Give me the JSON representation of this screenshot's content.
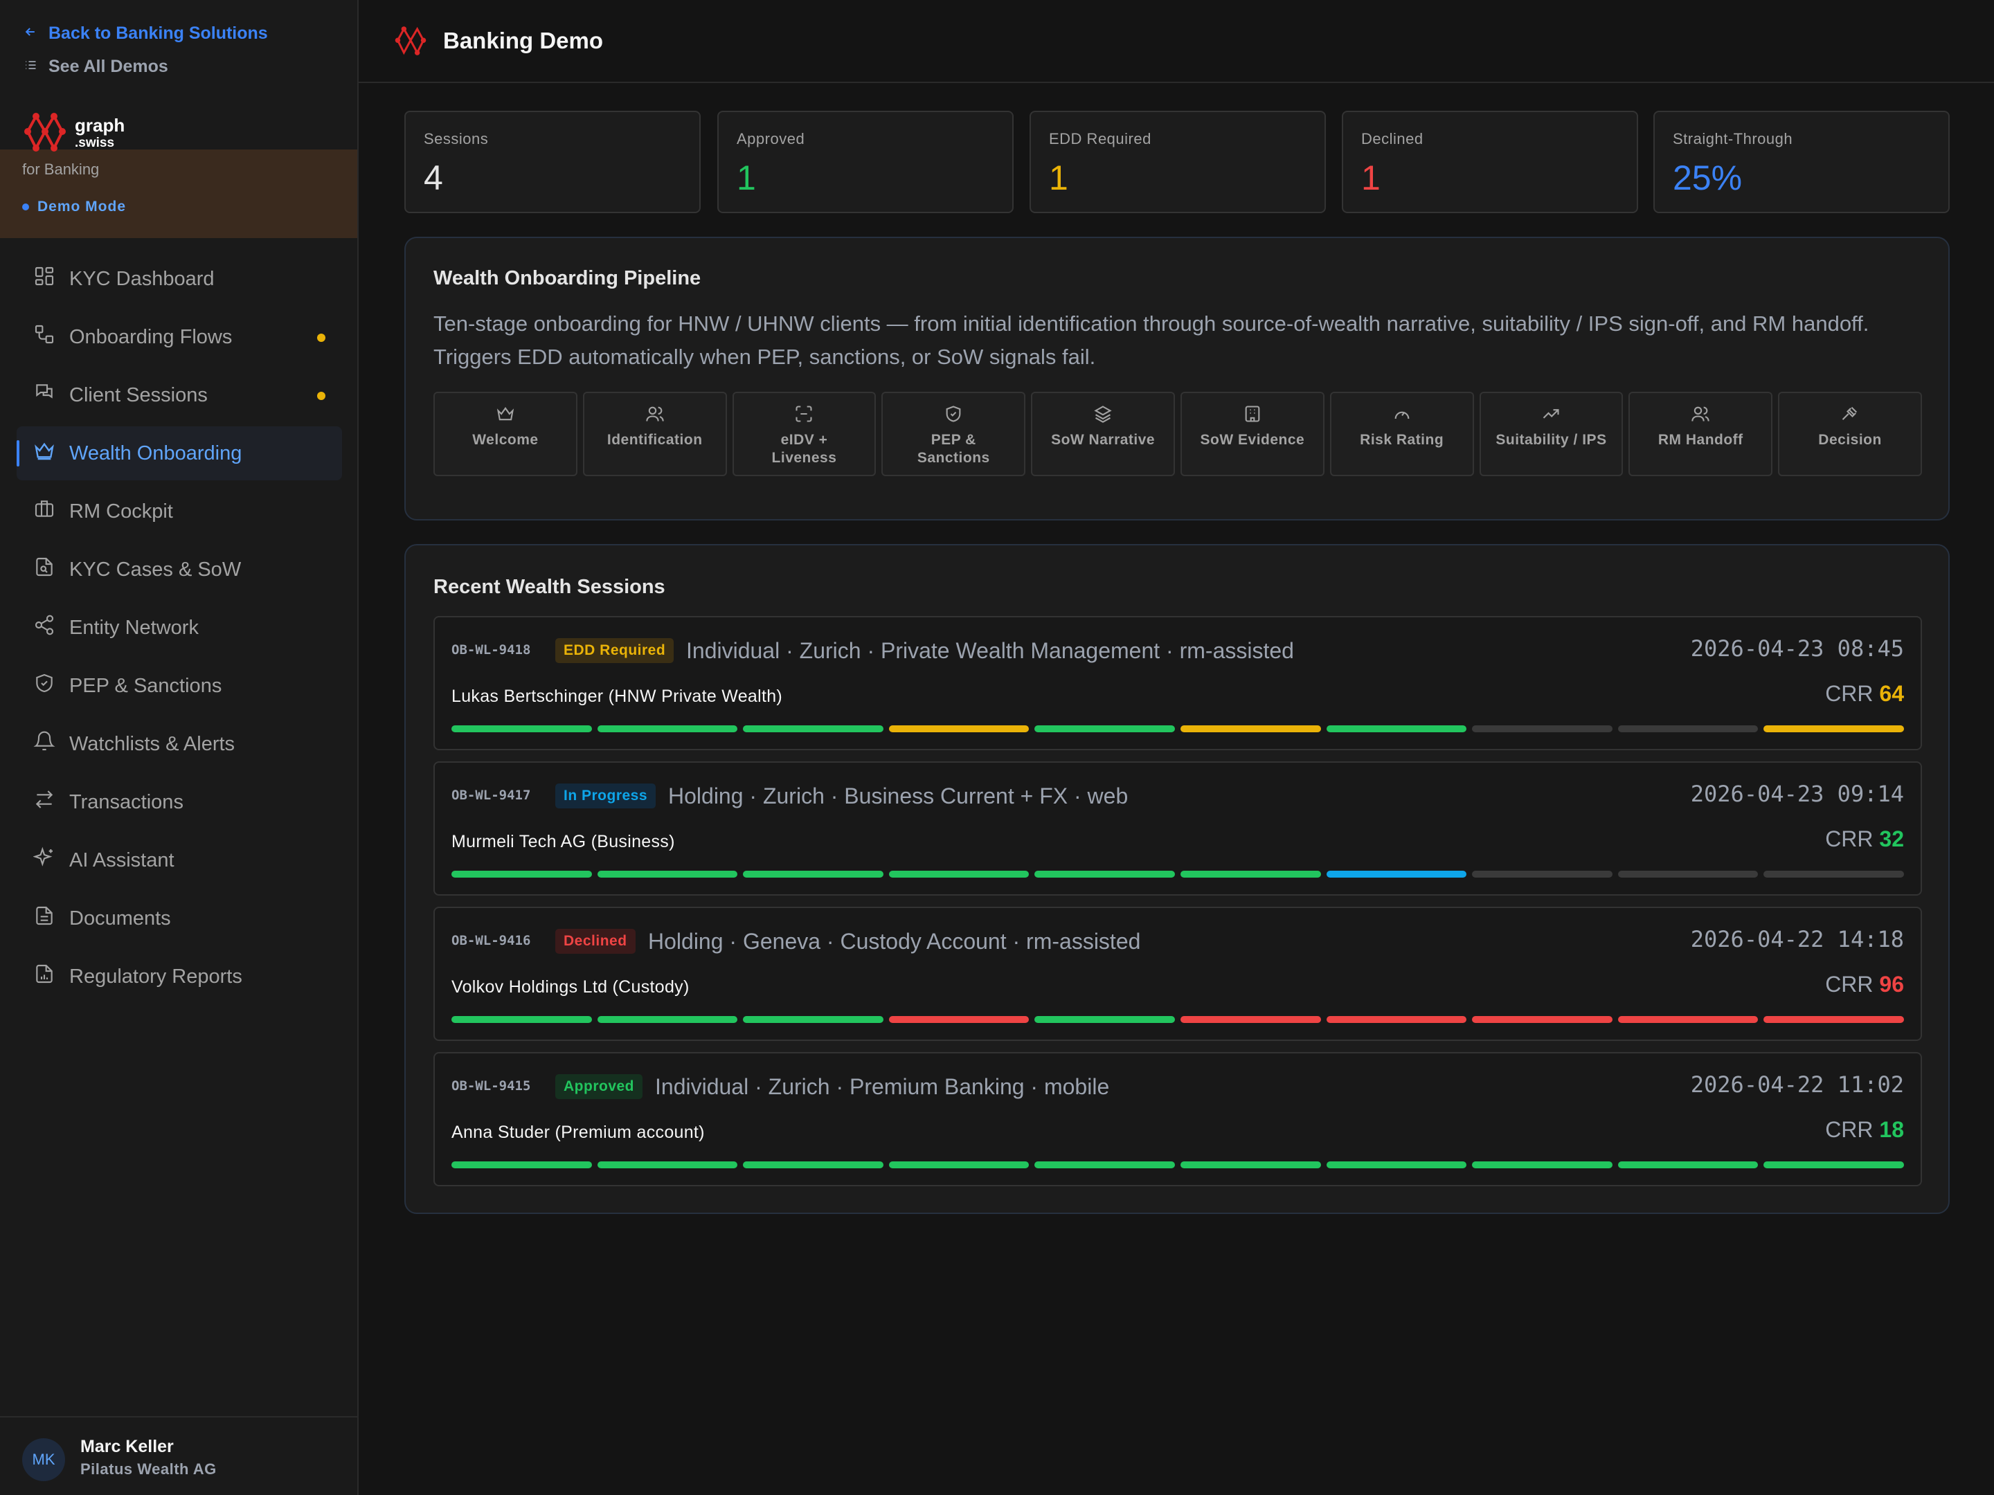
{
  "sidebar": {
    "back_link": "Back to Banking Solutions",
    "all_demos": "See All Demos",
    "logo_line1": "graph",
    "logo_line2": ".swiss",
    "for_banking": "for Banking",
    "demo_mode": "Demo Mode",
    "items": [
      {
        "label": "KYC Dashboard",
        "icon": "dashboard-icon"
      },
      {
        "label": "Onboarding Flows",
        "icon": "flow-icon",
        "dot": true
      },
      {
        "label": "Client Sessions",
        "icon": "sessions-icon",
        "dot": true
      },
      {
        "label": "Wealth Onboarding",
        "icon": "crown-icon",
        "active": true
      },
      {
        "label": "RM Cockpit",
        "icon": "briefcase-icon"
      },
      {
        "label": "KYC Cases & SoW",
        "icon": "file-search-icon"
      },
      {
        "label": "Entity Network",
        "icon": "share-icon"
      },
      {
        "label": "PEP & Sanctions",
        "icon": "shield-icon"
      },
      {
        "label": "Watchlists & Alerts",
        "icon": "bell-icon"
      },
      {
        "label": "Transactions",
        "icon": "arrows-icon"
      },
      {
        "label": "AI Assistant",
        "icon": "sparkles-icon"
      },
      {
        "label": "Documents",
        "icon": "document-icon"
      },
      {
        "label": "Regulatory Reports",
        "icon": "report-icon"
      }
    ],
    "user": {
      "initials": "MK",
      "name": "Marc Keller",
      "org": "Pilatus Wealth AG"
    }
  },
  "header": {
    "title": "Banking Demo"
  },
  "stats": [
    {
      "label": "Sessions",
      "value": "4",
      "color": "#e5e5e5"
    },
    {
      "label": "Approved",
      "value": "1",
      "color": "#22c55e"
    },
    {
      "label": "EDD Required",
      "value": "1",
      "color": "#eab308"
    },
    {
      "label": "Declined",
      "value": "1",
      "color": "#ef4444"
    },
    {
      "label": "Straight-Through",
      "value": "25%",
      "color": "#3b82f6"
    }
  ],
  "pipeline": {
    "title": "Wealth Onboarding Pipeline",
    "description": "Ten-stage onboarding for HNW / UHNW clients — from initial identification through source-of-wealth narrative, suitability / IPS sign-off, and RM handoff. Triggers EDD automatically when PEP, sanctions, or SoW signals fail.",
    "stages": [
      {
        "label": "Welcome",
        "icon": "crown-icon"
      },
      {
        "label": "Identification",
        "icon": "users-icon"
      },
      {
        "label": "eIDV + Liveness",
        "icon": "scan-face-icon"
      },
      {
        "label": "PEP & Sanctions",
        "icon": "shield-check-icon"
      },
      {
        "label": "SoW Narrative",
        "icon": "layers-icon"
      },
      {
        "label": "SoW Evidence",
        "icon": "building-icon"
      },
      {
        "label": "Risk Rating",
        "icon": "gauge-icon"
      },
      {
        "label": "Suitability / IPS",
        "icon": "trending-up-icon"
      },
      {
        "label": "RM Handoff",
        "icon": "users-icon"
      },
      {
        "label": "Decision",
        "icon": "gavel-icon"
      }
    ]
  },
  "sessions_panel": {
    "title": "Recent Wealth Sessions",
    "crr_label": "CRR",
    "sessions": [
      {
        "id": "OB-WL-9418",
        "status": "EDD Required",
        "status_color": "#eab308",
        "status_bg": "#3a2e14",
        "meta": "Individual  · Zurich  · Private Wealth Management  · rm-assisted",
        "time": "2026-04-23 08:45",
        "client": "Lukas Bertschinger (HNW Private Wealth)",
        "crr": "64",
        "crr_color": "#eab308",
        "steps": [
          "done",
          "done",
          "done",
          "warn",
          "done",
          "warn",
          "done",
          "pending",
          "pending",
          "warn"
        ]
      },
      {
        "id": "OB-WL-9417",
        "status": "In Progress",
        "status_color": "#0ea5e9",
        "status_bg": "#13283a",
        "meta": "Holding  · Zurich  · Business Current + FX  · web",
        "time": "2026-04-23 09:14",
        "client": "Murmeli Tech AG (Business)",
        "crr": "32",
        "crr_color": "#22c55e",
        "steps": [
          "done",
          "done",
          "done",
          "done",
          "done",
          "done",
          "active",
          "pending",
          "pending",
          "pending"
        ]
      },
      {
        "id": "OB-WL-9416",
        "status": "Declined",
        "status_color": "#ef4444",
        "status_bg": "#3a1a1a",
        "meta": "Holding  · Geneva  · Custody Account  · rm-assisted",
        "time": "2026-04-22 14:18",
        "client": "Volkov Holdings Ltd (Custody)",
        "crr": "96",
        "crr_color": "#ef4444",
        "steps": [
          "done",
          "done",
          "done",
          "fail",
          "done",
          "fail",
          "fail",
          "fail",
          "fail",
          "fail"
        ]
      },
      {
        "id": "OB-WL-9415",
        "status": "Approved",
        "status_color": "#22c55e",
        "status_bg": "#15301f",
        "meta": "Individual  · Zurich  · Premium Banking  · mobile",
        "time": "2026-04-22 11:02",
        "client": "Anna Studer (Premium account)",
        "crr": "18",
        "crr_color": "#22c55e",
        "steps": [
          "done",
          "done",
          "done",
          "done",
          "done",
          "done",
          "done",
          "done",
          "done",
          "done"
        ]
      }
    ]
  },
  "step_colors": {
    "done": "#22c55e",
    "warn": "#eab308",
    "fail": "#ef4444",
    "active": "#0ea5e9",
    "pending": "#3a3a3a"
  }
}
